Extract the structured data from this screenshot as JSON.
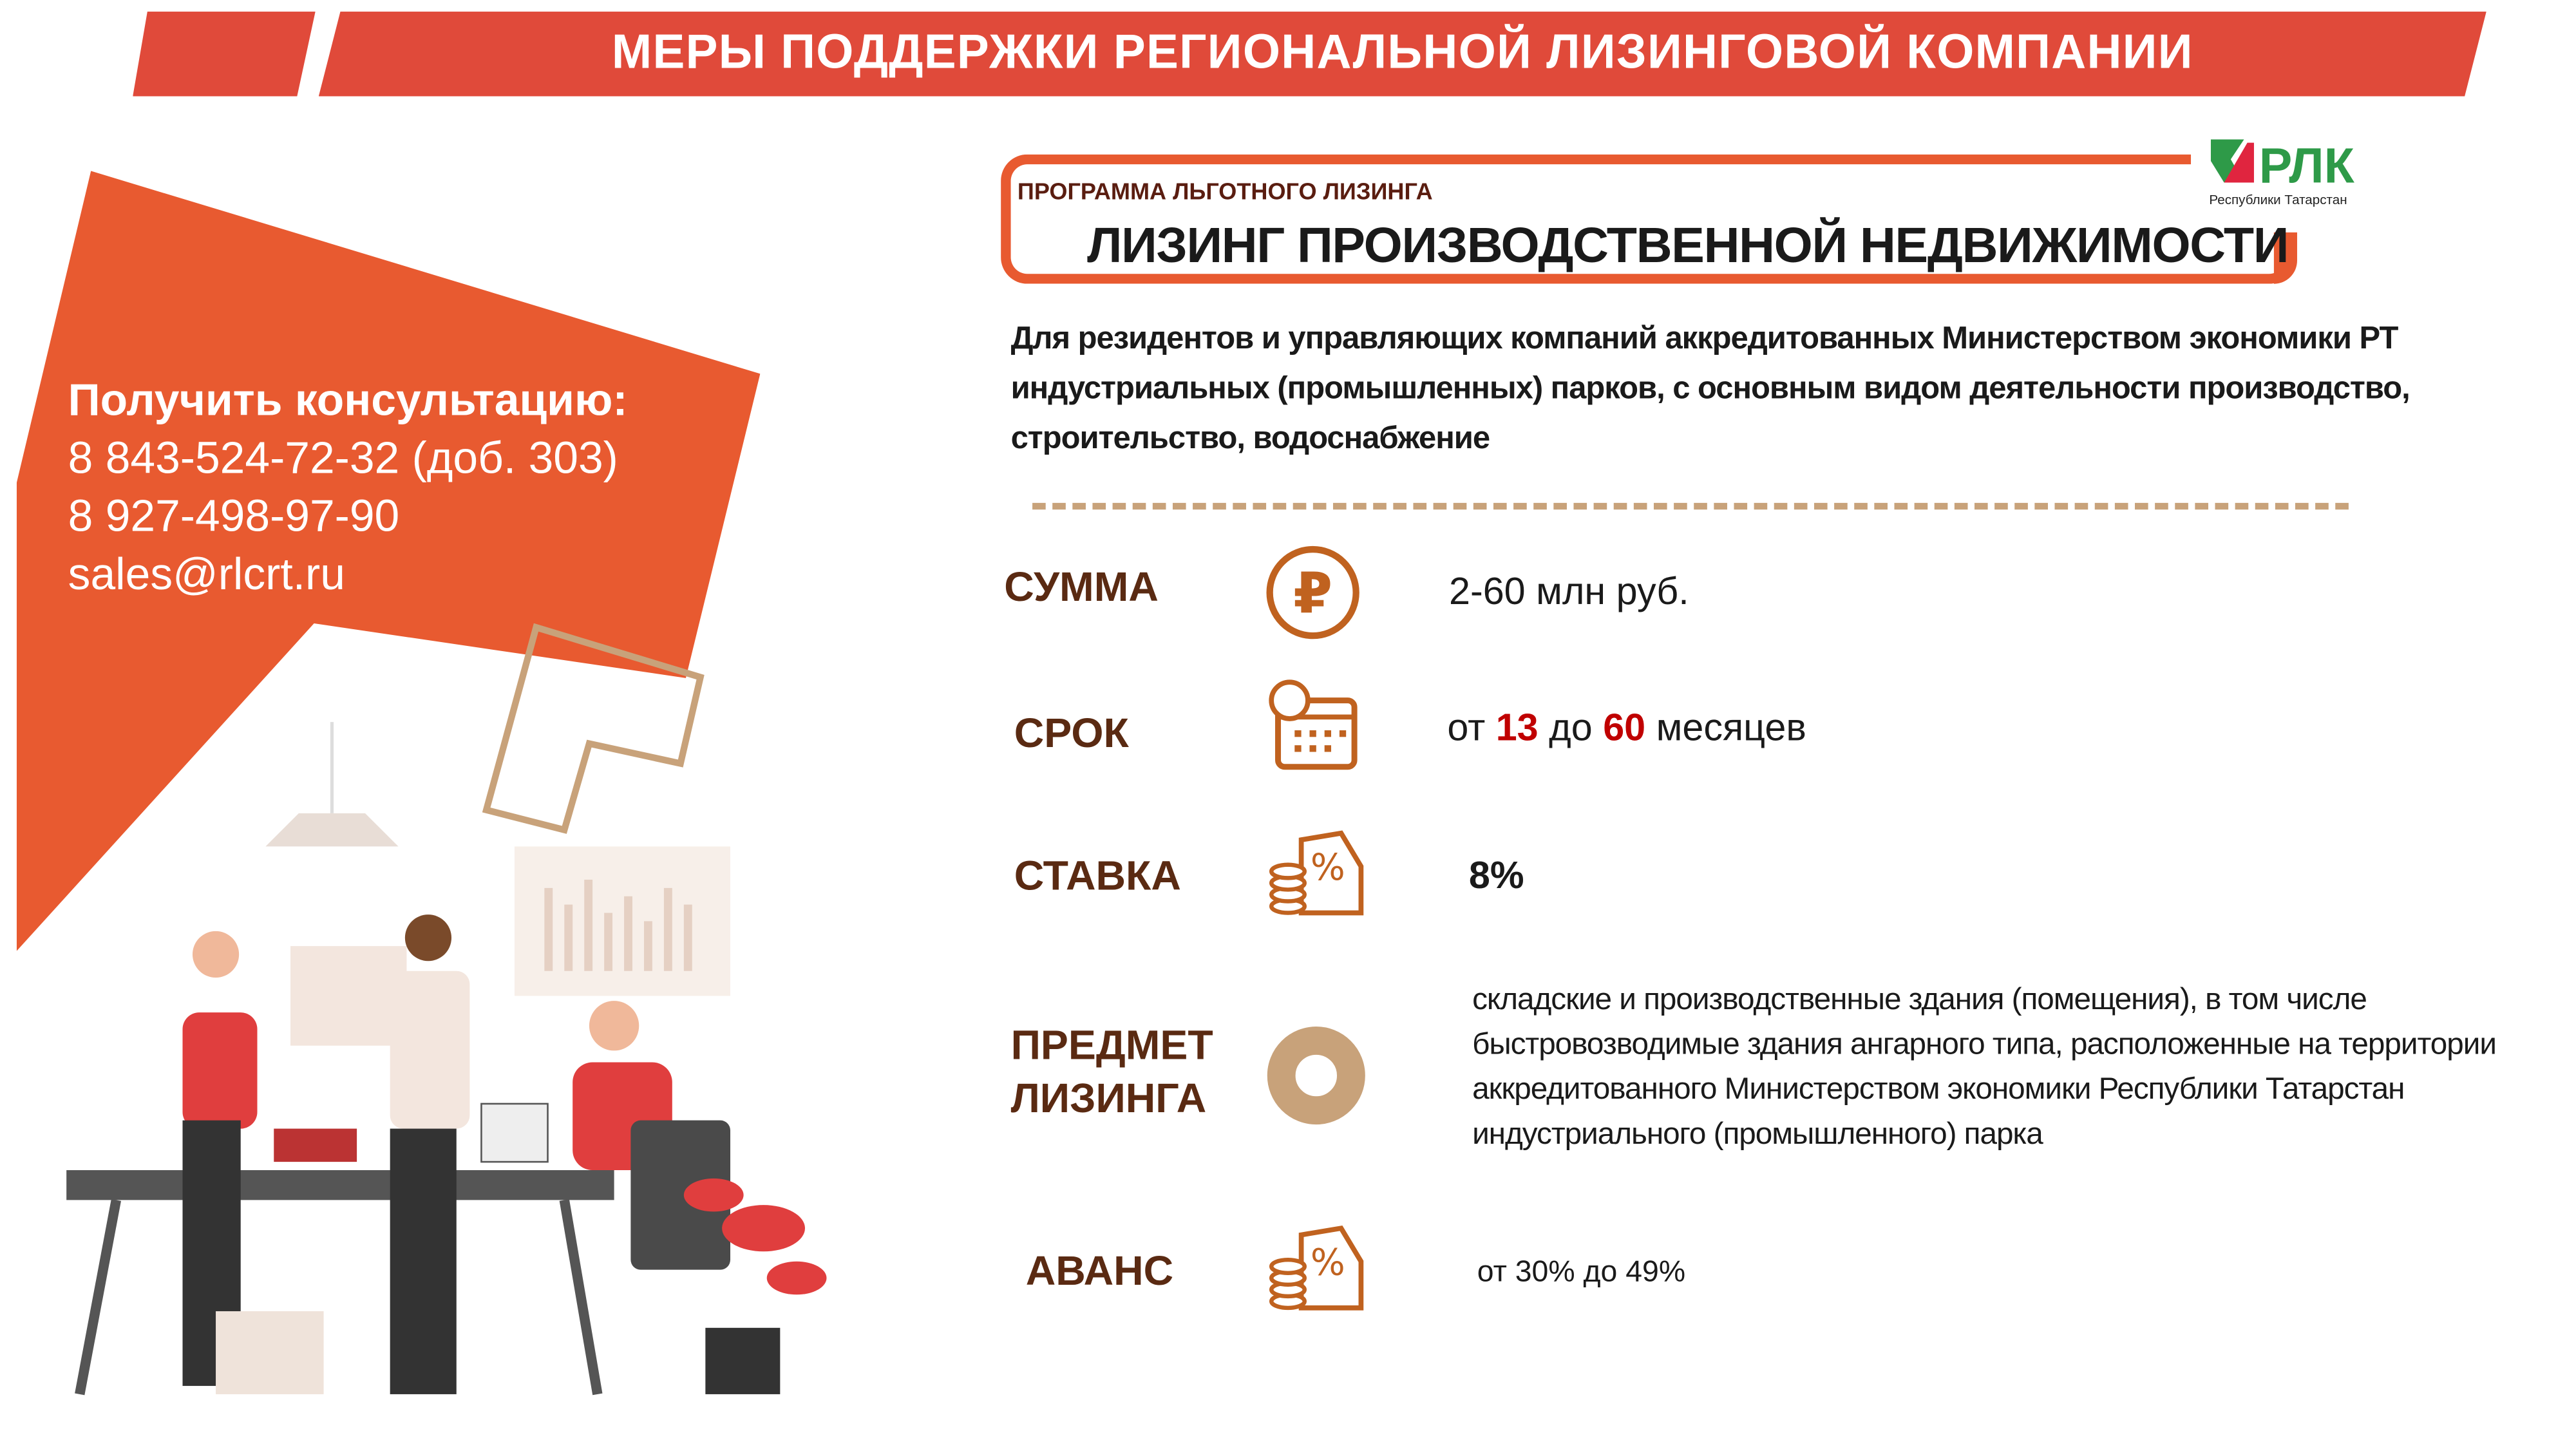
{
  "banner": {
    "title": "МЕРЫ ПОДДЕРЖКИ РЕГИОНАЛЬНОЙ ЛИЗИНГОВОЙ КОМПАНИИ"
  },
  "contact": {
    "heading": "Получить консультацию:",
    "phone1": "8 843-524-72-32 (доб. 303)",
    "phone2": "8 927-498-97-90",
    "email": "sales@rlcrt.ru"
  },
  "program": {
    "subtitle": "ПРОГРАММА ЛЬГОТНОГО ЛИЗИНГА",
    "title": "ЛИЗИНГ ПРОИЗВОДСТВЕННОЙ НЕДВИЖИМОСТИ"
  },
  "logo": {
    "text": "РЛК",
    "subtitle": "Республики Татарстан",
    "colors": {
      "green": "#2e9a48",
      "red": "#e0253f"
    }
  },
  "description": "Для резидентов и управляющих компаний аккредитованных Министерством экономики РТ индустриальных (промышленных) парков, с основным видом деятельности производство, строительство, водоснабжение",
  "terms": {
    "sum": {
      "label": "СУММА",
      "icon": "ruble-icon",
      "value": "2-60 млн руб."
    },
    "term": {
      "label": "СРОК",
      "icon": "calendar-clock-icon",
      "prefix": "от",
      "min": "13",
      "middle": "до",
      "max": "60",
      "suffix": "месяцев"
    },
    "rate": {
      "label": "СТАВКА",
      "icon": "percent-coins-icon",
      "value": "8%"
    },
    "subject": {
      "label_line1": "ПРЕДМЕТ",
      "label_line2": "ЛИЗИНГА",
      "icon": "ring-icon",
      "value": "складские и производственные здания (помещения), в том числе быстровозводимые здания ангарного типа, расположенные на территории аккредитованного Министерством экономики Республики Татарстан индустриального (промышленного) парка"
    },
    "advance": {
      "label": "АВАНС",
      "icon": "percent-coins-icon",
      "value": "от 30% до 49%"
    }
  },
  "colors": {
    "accent": "#e85a30",
    "banner": "#e04a3a",
    "icon": "#c0621f",
    "highlight": "#c00000",
    "dash": "#c8a27a"
  }
}
